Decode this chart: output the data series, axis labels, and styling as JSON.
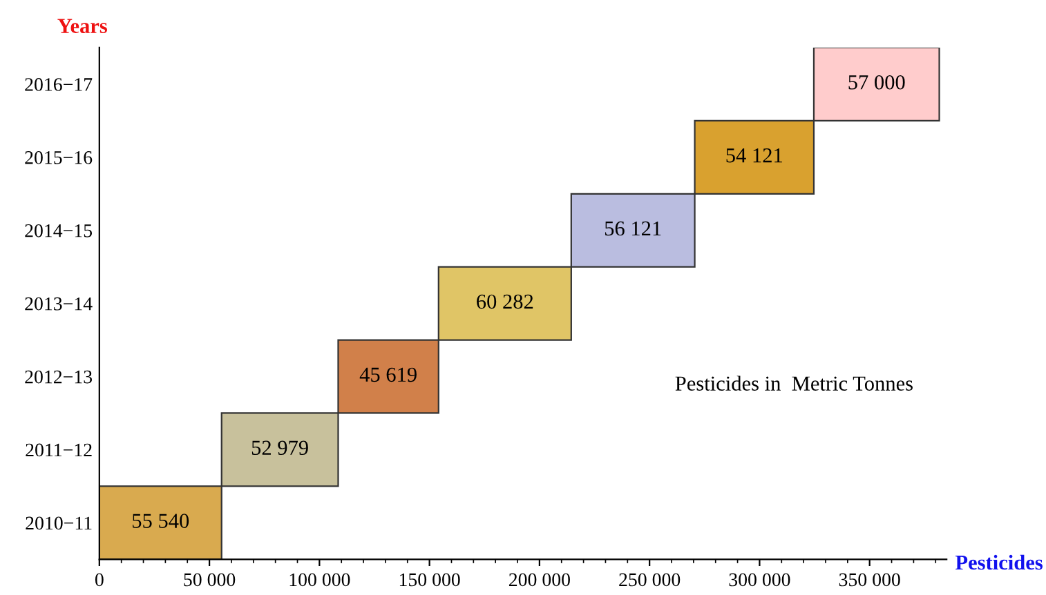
{
  "chart_data": {
    "type": "bar",
    "orientation": "horizontal",
    "xlabel": "Pesticides",
    "ylabel": "Years",
    "categories": [
      "2016−17",
      "2015−16",
      "2014−15",
      "2013−14",
      "2012−13",
      "2011−12",
      "2010−11"
    ],
    "values": [
      57000,
      54121,
      56121,
      60282,
      45619,
      52979,
      55540
    ],
    "base": [
      324662,
      270541,
      214420,
      154138,
      108519,
      55540,
      0
    ],
    "colors": [
      "#ffcccc",
      "#d9a12f",
      "#babde0",
      "#e0c566",
      "#d1804a",
      "#c8c19c",
      "#d9aa4f"
    ],
    "value_labels": [
      "57 000",
      "54 121",
      "56 121",
      "60 282",
      "45 619",
      "52 979",
      "55 540"
    ],
    "xlim": [
      0,
      385000
    ],
    "xticks": [
      0,
      {
        "value": 50000,
        "label": "50 000"
      },
      {
        "value": 100000,
        "label": "100 000"
      },
      {
        "value": 150000,
        "label": "150 000"
      },
      {
        "value": 200000,
        "label": "200 000"
      },
      {
        "value": 250000,
        "label": "250 000"
      },
      {
        "value": 300000,
        "label": "300 000"
      },
      {
        "value": 350000,
        "label": "350 000"
      }
    ],
    "annotations": [
      "Pesticides in  Metric Tonnes"
    ],
    "grid": false,
    "legend": false
  }
}
